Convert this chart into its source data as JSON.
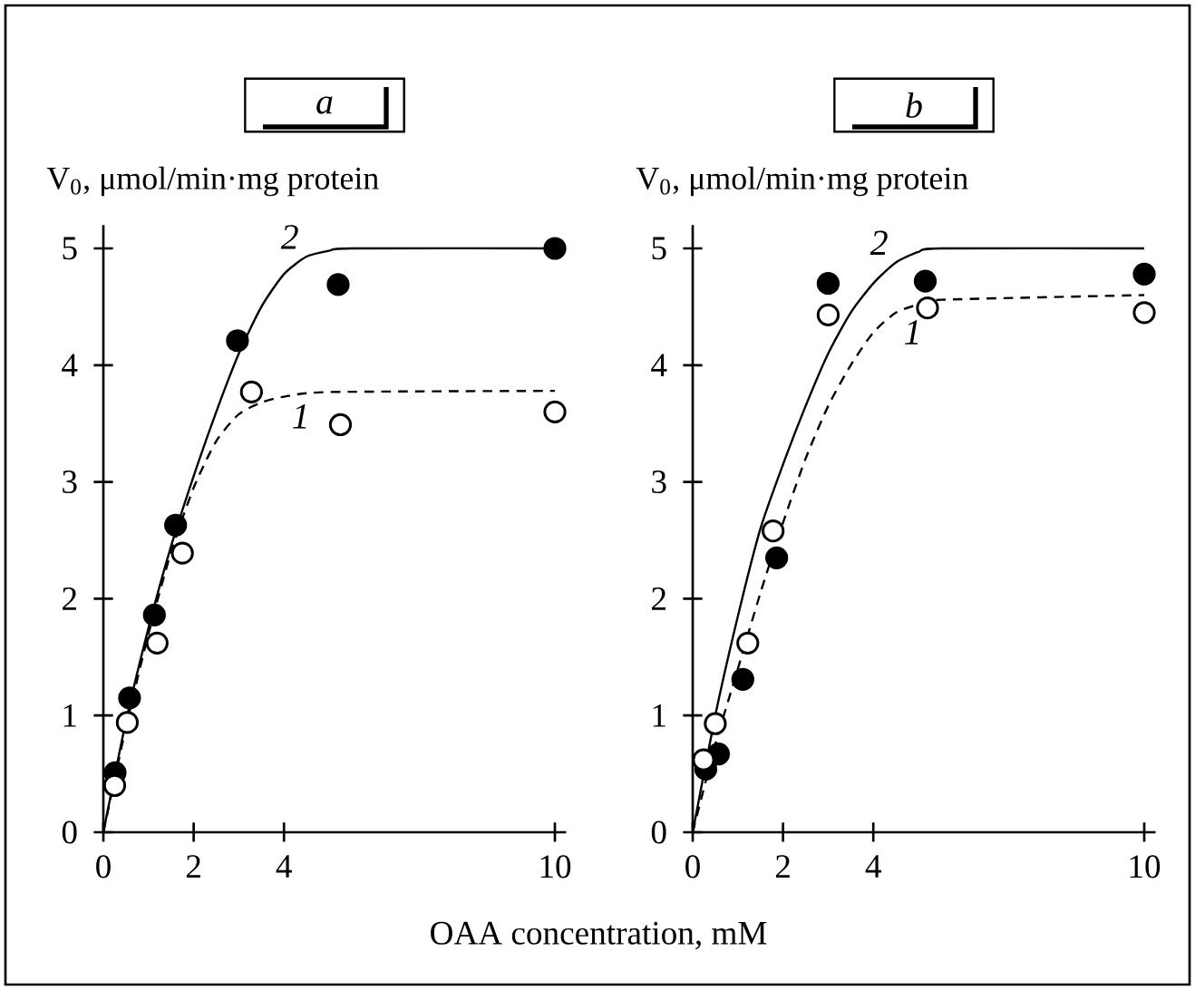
{
  "chart_data": [
    {
      "type": "scatter",
      "title": "a",
      "ylabel": "V$_{0}$, μmol/min·mg protein",
      "xlabel": "OAA concentration, mM",
      "xlim": [
        0,
        10.25
      ],
      "ylim": [
        0,
        5.2
      ],
      "xticks": [
        0,
        2,
        4,
        10
      ],
      "yticks": [
        0,
        1,
        2,
        3,
        4,
        5
      ],
      "grid": false,
      "series": [
        {
          "type": "line",
          "name": "2",
          "line_style": "solid",
          "color": "#000000",
          "x": [
            0,
            0.5,
            1,
            1.5,
            2,
            2.5,
            3,
            3.5,
            4,
            4.5,
            5,
            5.5,
            10
          ],
          "values": [
            0,
            0.95,
            1.75,
            2.45,
            3.05,
            3.6,
            4.1,
            4.5,
            4.78,
            4.93,
            4.98,
            5.0,
            5.0
          ]
        },
        {
          "type": "line",
          "name": "1",
          "line_style": "dashed",
          "color": "#000000",
          "x": [
            0,
            0.5,
            1,
            1.5,
            2,
            2.5,
            3,
            3.5,
            4,
            5,
            10
          ],
          "values": [
            0,
            0.9,
            1.7,
            2.4,
            2.95,
            3.35,
            3.58,
            3.68,
            3.73,
            3.77,
            3.78
          ]
        },
        {
          "marker": "circle",
          "color": "#000000",
          "x": [
            0.26,
            0.58,
            1.13,
            1.6,
            2.97,
            5.2,
            10
          ],
          "values": [
            0.51,
            1.15,
            1.86,
            2.63,
            4.21,
            4.69,
            5.0
          ]
        },
        {
          "marker": "circle",
          "color": "#ffffff",
          "x": [
            0.25,
            0.53,
            1.19,
            1.75,
            3.28,
            5.25,
            10
          ],
          "values": [
            0.4,
            0.94,
            1.62,
            2.39,
            3.77,
            3.49,
            3.6
          ]
        }
      ]
    },
    {
      "type": "scatter",
      "title": "b",
      "ylabel": "V$_{0}$, μmol/min·mg protein",
      "xlim": [
        0,
        10.25
      ],
      "ylim": [
        0,
        5.2
      ],
      "xticks": [
        0,
        2,
        4,
        10
      ],
      "yticks": [
        0,
        1,
        2,
        3,
        4,
        5
      ],
      "grid": false,
      "series": [
        {
          "type": "line",
          "name": "2",
          "line_style": "solid",
          "color": "#000000",
          "x": [
            0,
            0.5,
            1,
            1.5,
            2,
            2.5,
            3,
            3.5,
            4,
            4.5,
            5,
            5.5,
            10
          ],
          "values": [
            0,
            1.0,
            1.85,
            2.6,
            3.15,
            3.65,
            4.1,
            4.45,
            4.7,
            4.88,
            4.97,
            5.0,
            5.0
          ]
        },
        {
          "type": "line",
          "name": "1",
          "line_style": "dashed",
          "color": "#000000",
          "x": [
            0,
            0.5,
            1,
            1.5,
            2,
            2.5,
            3,
            3.5,
            4,
            4.5,
            5,
            5.5,
            10
          ],
          "values": [
            0,
            0.75,
            1.4,
            2.05,
            2.65,
            3.2,
            3.65,
            4.0,
            4.28,
            4.45,
            4.52,
            4.56,
            4.6
          ]
        },
        {
          "marker": "circle",
          "color": "#000000",
          "x": [
            0.29,
            0.57,
            1.11,
            1.86,
            3.0,
            5.15,
            10
          ],
          "values": [
            0.54,
            0.67,
            1.31,
            2.35,
            4.7,
            4.72,
            4.78
          ]
        },
        {
          "marker": "circle",
          "color": "#ffffff",
          "x": [
            0.24,
            0.5,
            1.22,
            1.78,
            3.0,
            5.2,
            10
          ],
          "values": [
            0.62,
            0.93,
            1.62,
            2.58,
            4.43,
            4.49,
            4.45
          ]
        }
      ]
    }
  ]
}
